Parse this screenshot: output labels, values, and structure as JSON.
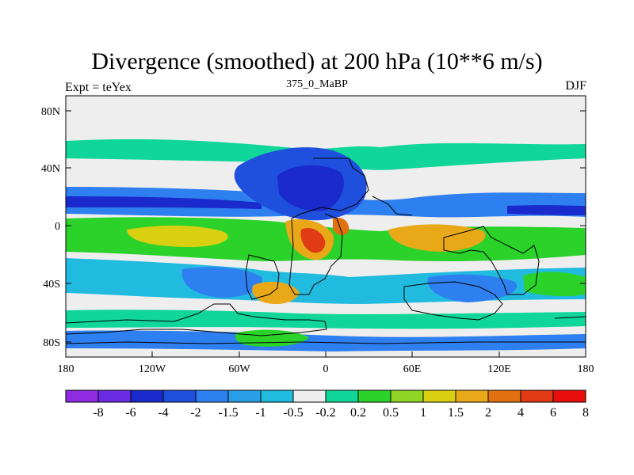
{
  "title": "Divergence (smoothed) at 200 hPa (10**6 m/s)",
  "left_label": "Expt = teYex",
  "center_label": "375_0_MaBP",
  "right_label": "DJF",
  "y_ticks": [
    "80N",
    "40N",
    "0",
    "40S",
    "80S"
  ],
  "x_ticks": [
    "180",
    "120W",
    "60W",
    "0",
    "60E",
    "120E",
    "180"
  ],
  "colorbar": {
    "colors": [
      "#8f2be0",
      "#6a2be0",
      "#1a2acc",
      "#1f50dd",
      "#2e7ff0",
      "#2a9fe8",
      "#22bbe0",
      "#eeeeee",
      "#10d69a",
      "#2ad22a",
      "#8fd425",
      "#d8d010",
      "#e8a818",
      "#e07010",
      "#e03b15",
      "#e80e0e"
    ],
    "labels": [
      "-8",
      "-6",
      "-4",
      "-2",
      "-1.5",
      "-1",
      "-0.5",
      "-0.2",
      "0.2",
      "0.5",
      "1",
      "1.5",
      "2",
      "4",
      "6",
      "8"
    ]
  },
  "legend_colors": {
    "strong_neg": "#1a2acc",
    "neg": "#2e7ff0",
    "weak_neg": "#22bbe0",
    "neutral": "#eeeeee",
    "weak_pos": "#10d69a",
    "pos": "#2ad22a",
    "mid_pos": "#d8d010",
    "strong_pos": "#e8a818",
    "max_pos": "#e03b15"
  }
}
